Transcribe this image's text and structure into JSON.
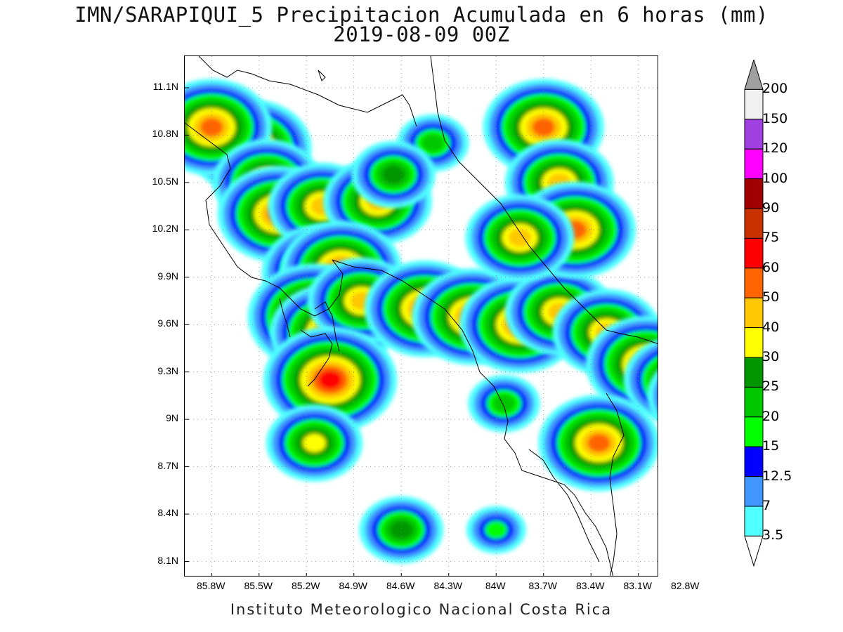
{
  "title": {
    "line1": "IMN/SARAPIQUI_5 Precipitacion Acumulada en 6 horas (mm)",
    "line2": "2019-08-09 00Z"
  },
  "footer": "Instituto Meteorologico Nacional Costa Rica",
  "axes": {
    "lat_labels": [
      "11.1N",
      "10.8N",
      "10.5N",
      "10.2N",
      "9.9N",
      "9.6N",
      "9.3N",
      "9N",
      "8.7N",
      "8.4N",
      "8.1N"
    ],
    "lon_labels": [
      "85.8W",
      "85.5W",
      "85.2W",
      "84.9W",
      "84.6W",
      "84.3W",
      "84W",
      "83.7W",
      "83.4W",
      "83.1W",
      "82.8W"
    ],
    "lat_range": [
      8.0,
      11.3
    ],
    "lon_range": [
      -85.97,
      -82.97
    ],
    "grid": "dotted"
  },
  "legend": {
    "labels": [
      "200",
      "150",
      "120",
      "100",
      "90",
      "75",
      "60",
      "50",
      "40",
      "30",
      "25",
      "20",
      "15",
      "12.5",
      "7",
      "3.5"
    ],
    "colors": [
      "#a0a0a0",
      "#f0f0f0",
      "#a040e0",
      "#ff00ff",
      "#a00000",
      "#c83200",
      "#ff0000",
      "#ff6400",
      "#ffc800",
      "#ffff00",
      "#009600",
      "#00c800",
      "#00ff00",
      "#0000ff",
      "#4196ff",
      "#50ffff",
      "#ffffff"
    ]
  },
  "precip_blobs": [
    {
      "lon": -85.55,
      "lat": 10.72,
      "level": 9
    },
    {
      "lon": -85.8,
      "lat": 10.85,
      "level": 9
    },
    {
      "lon": -85.45,
      "lat": 10.5,
      "level": 8
    },
    {
      "lon": -85.38,
      "lat": 10.3,
      "level": 9
    },
    {
      "lon": -85.1,
      "lat": 10.35,
      "level": 8
    },
    {
      "lon": -84.75,
      "lat": 10.38,
      "level": 8
    },
    {
      "lon": -85.1,
      "lat": 9.93,
      "level": 9
    },
    {
      "lon": -84.98,
      "lat": 9.95,
      "level": 9
    },
    {
      "lon": -85.15,
      "lat": 9.65,
      "level": 10
    },
    {
      "lon": -85.05,
      "lat": 9.55,
      "level": 9
    },
    {
      "lon": -84.85,
      "lat": 9.75,
      "level": 8
    },
    {
      "lon": -84.45,
      "lat": 9.7,
      "level": 9
    },
    {
      "lon": -84.15,
      "lat": 9.65,
      "level": 9
    },
    {
      "lon": -83.85,
      "lat": 9.6,
      "level": 9
    },
    {
      "lon": -83.6,
      "lat": 9.68,
      "level": 8
    },
    {
      "lon": -83.7,
      "lat": 10.85,
      "level": 9
    },
    {
      "lon": -83.6,
      "lat": 10.5,
      "level": 8
    },
    {
      "lon": -83.5,
      "lat": 10.2,
      "level": 9
    },
    {
      "lon": -83.85,
      "lat": 10.15,
      "level": 8
    },
    {
      "lon": -83.3,
      "lat": 9.55,
      "level": 8
    },
    {
      "lon": -83.05,
      "lat": 9.35,
      "level": 9
    },
    {
      "lon": -82.85,
      "lat": 9.25,
      "level": 8
    },
    {
      "lon": -85.05,
      "lat": 9.25,
      "level": 10
    },
    {
      "lon": -85.15,
      "lat": 8.85,
      "level": 7
    },
    {
      "lon": -83.35,
      "lat": 8.85,
      "level": 9
    },
    {
      "lon": -82.7,
      "lat": 9.15,
      "level": 8
    },
    {
      "lon": -84.6,
      "lat": 8.3,
      "level": 6
    },
    {
      "lon": -84.0,
      "lat": 8.3,
      "level": 4
    },
    {
      "lon": -84.4,
      "lat": 10.75,
      "level": 5
    },
    {
      "lon": -84.65,
      "lat": 10.55,
      "level": 6
    },
    {
      "lon": -83.95,
      "lat": 9.1,
      "level": 5
    }
  ]
}
